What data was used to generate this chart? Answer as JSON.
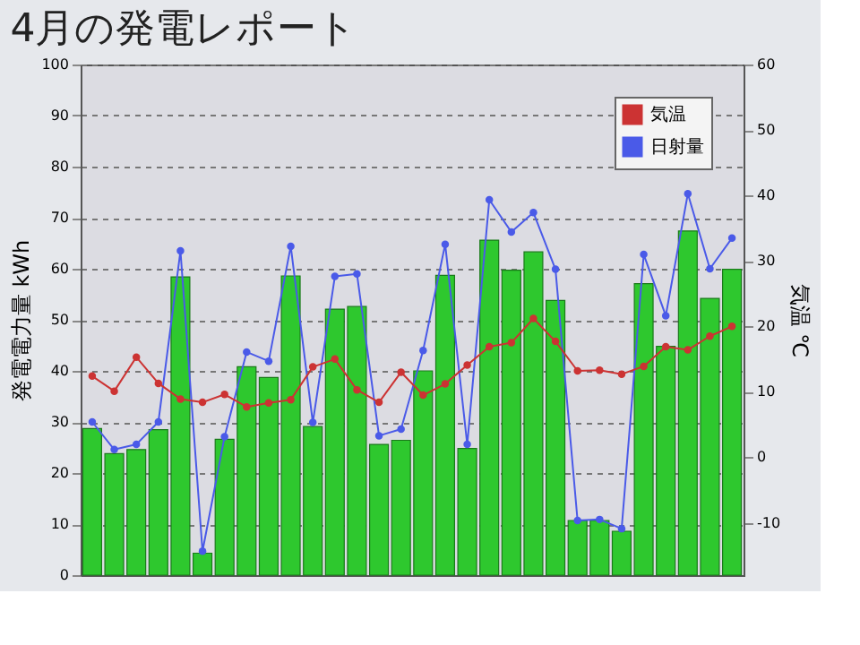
{
  "chart_data": {
    "type": "bar",
    "title": "4月の発電レポート",
    "ylabel": "発電電力量 kWh",
    "y2label": "気温 ℃",
    "categories": [
      null,
      null,
      null,
      null,
      null,
      null,
      null,
      null,
      null,
      null,
      null,
      null,
      null,
      null,
      null,
      null,
      null,
      null,
      null,
      null,
      null,
      null,
      null,
      null,
      null,
      null,
      null,
      null,
      null,
      null
    ],
    "series": [
      {
        "color": "#2ec82e",
        "values": [
          28.7,
          23.8,
          24.6,
          28.5,
          58.4,
          4.3,
          26.6,
          40.8,
          38.7,
          58.6,
          29.1,
          52.1,
          52.6,
          25.6,
          26.4,
          40,
          58.7,
          24.8,
          65.6,
          59.7,
          63.3,
          53.8,
          10.7,
          10.7,
          8.6,
          57.1,
          44.8,
          67.4,
          54.2,
          59.9
        ]
      },
      {
        "type": "line",
        "name": "気温",
        "axis": "y2",
        "color": "#cc3333",
        "values": [
          12.4,
          10.1,
          15.3,
          11.3,
          8.9,
          8.4,
          9.6,
          7.7,
          8.3,
          8.8,
          13.8,
          15.0,
          10.3,
          8.4,
          13.0,
          9.5,
          11.2,
          14.1,
          16.9,
          17.5,
          21.2,
          17.7,
          13.2,
          13.3,
          12.7,
          13.9,
          16.9,
          16.4,
          18.5,
          20
        ]
      },
      {
        "type": "line",
        "name": "日射量",
        "color": "#4a5ae8",
        "values": [
          30,
          24.6,
          25.6,
          30,
          63.5,
          4.7,
          27.1,
          43.7,
          41.9,
          64.4,
          29.9,
          58.5,
          59,
          27.3,
          28.6,
          44,
          64.8,
          25.6,
          73.5,
          67.2,
          71,
          59.9,
          10.7,
          10.9,
          9.1,
          62.8,
          50.8,
          74.7,
          60,
          66
        ]
      }
    ],
    "ylim": [
      0,
      100
    ],
    "yticks": [
      0,
      10,
      20,
      30,
      40,
      50,
      60,
      70,
      80,
      90,
      100
    ],
    "y2lim": [
      -18,
      60
    ],
    "y2ticks": [
      -10,
      0,
      10,
      20,
      30,
      40,
      50,
      60
    ],
    "grid": "y",
    "legend": "top right",
    "marker": "circle",
    "line_style": "solid"
  }
}
